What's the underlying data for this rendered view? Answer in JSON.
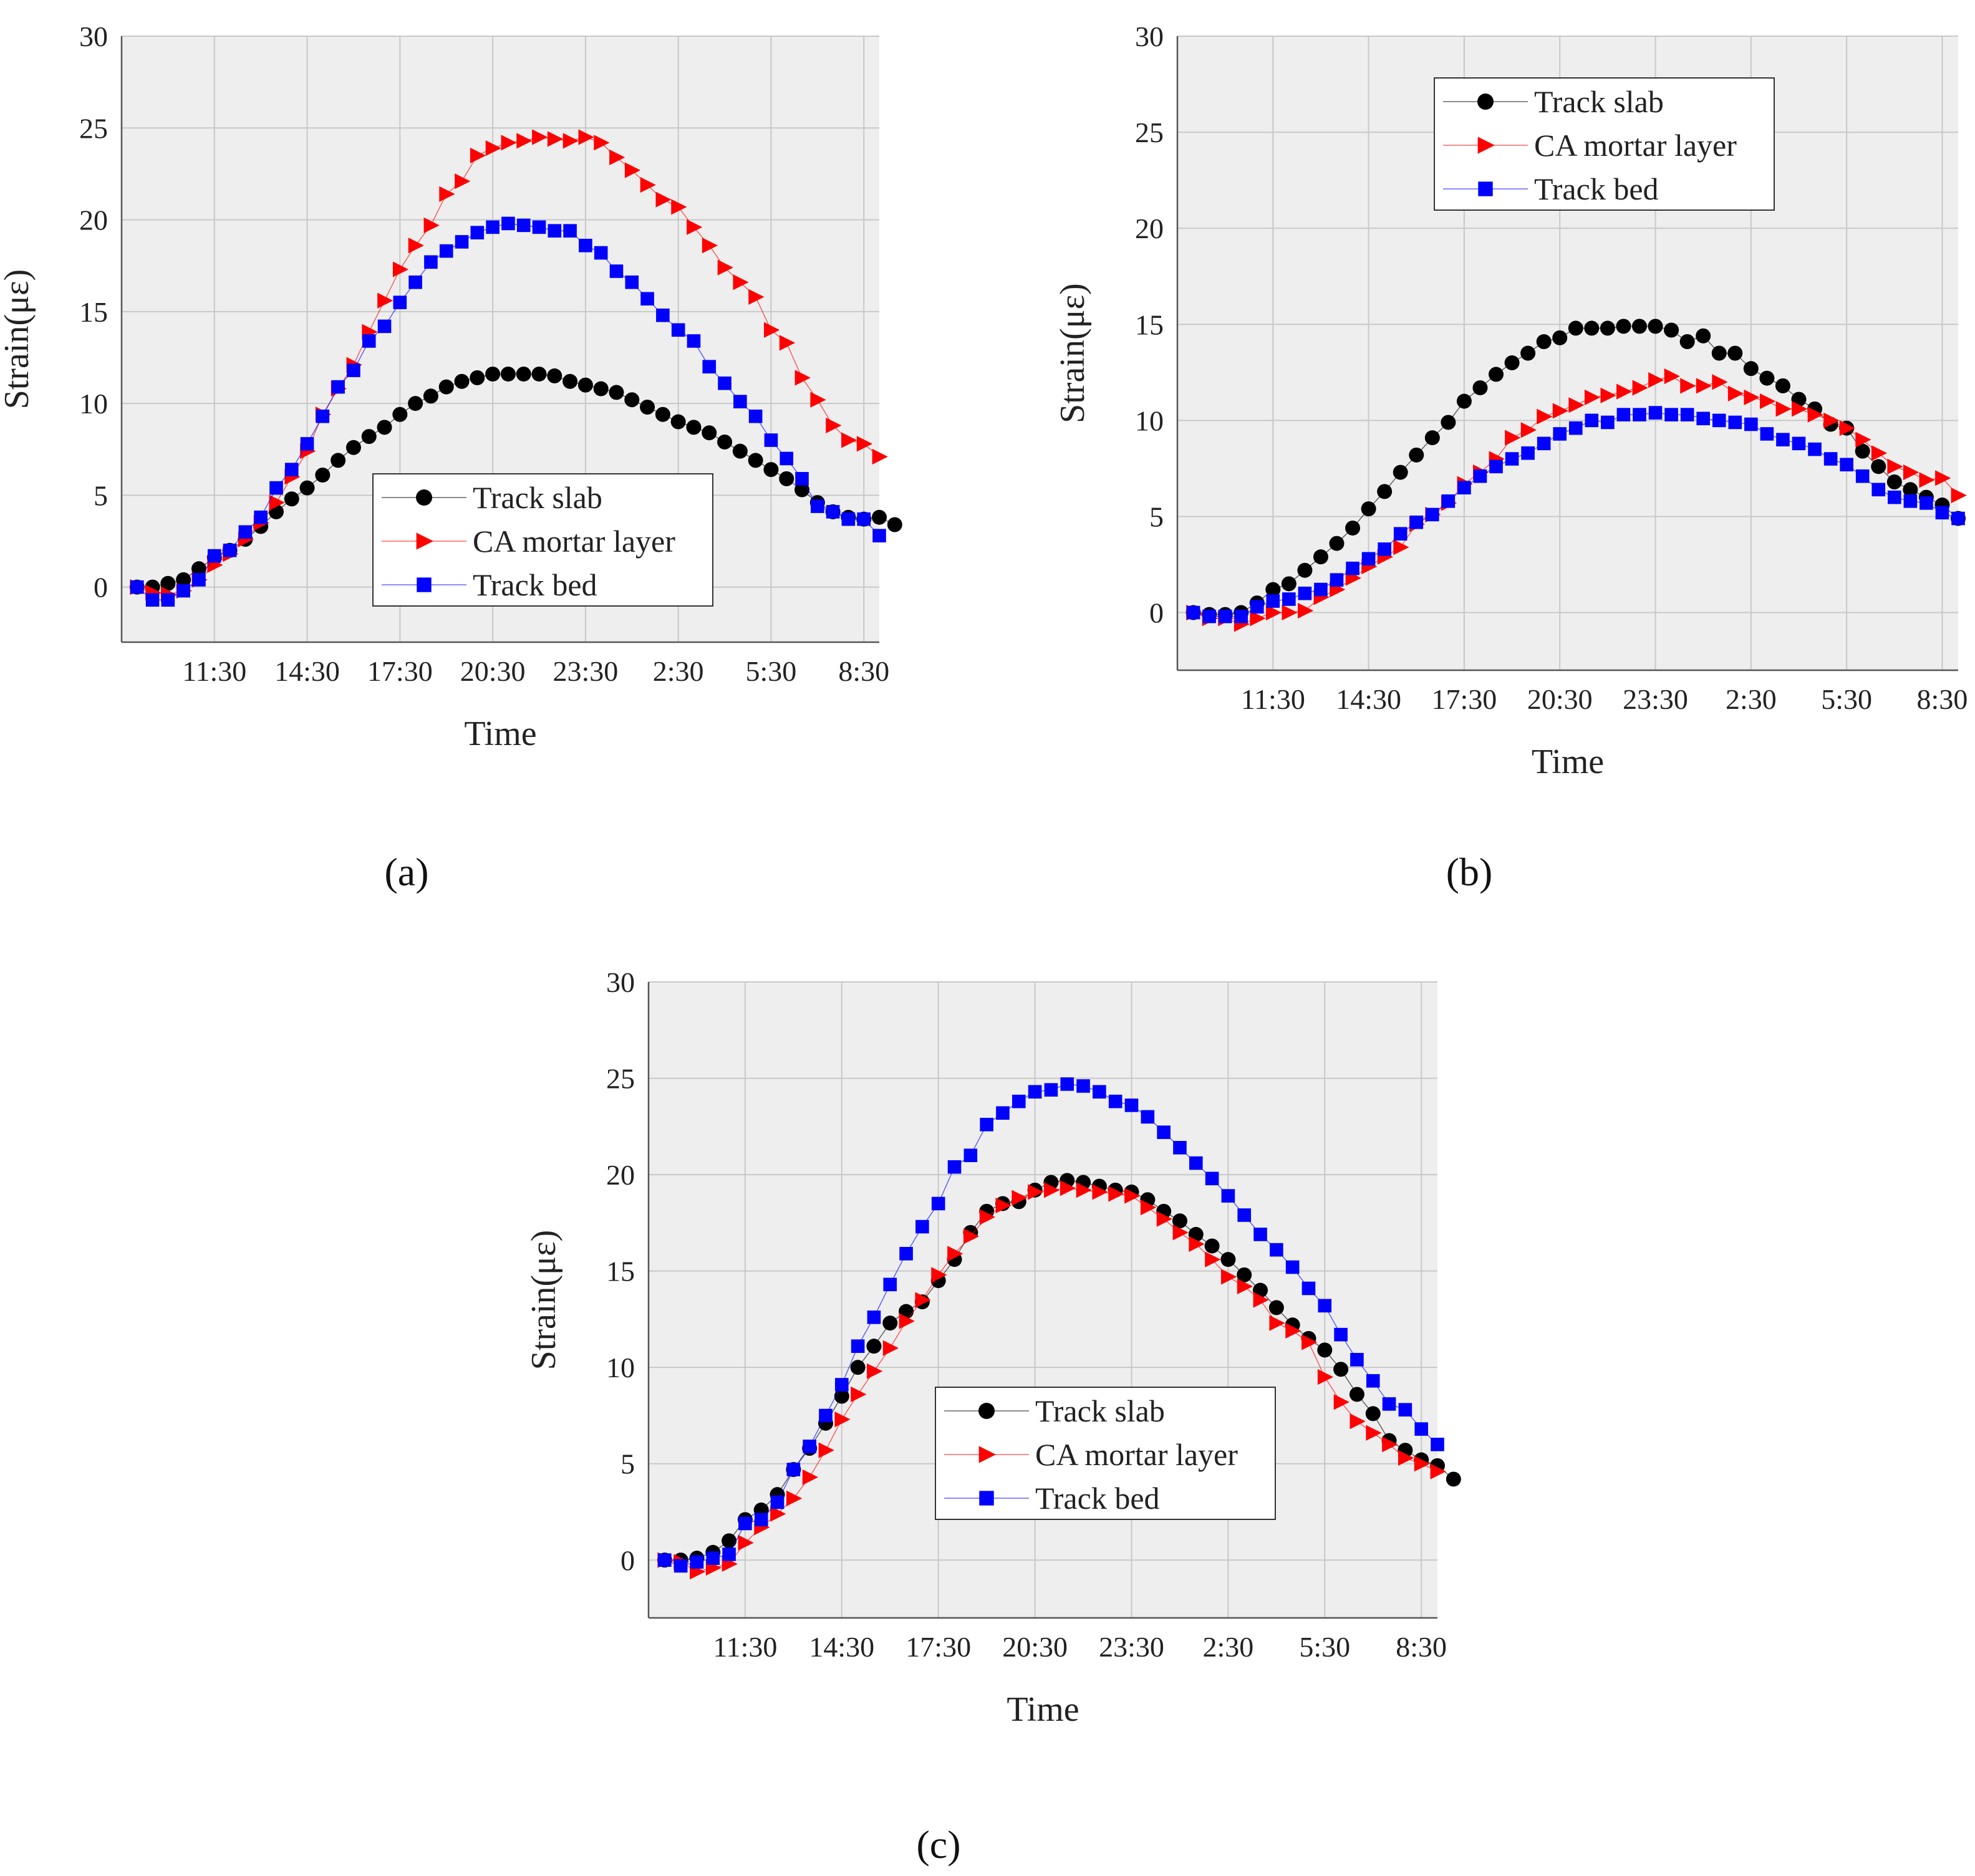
{
  "colors": {
    "plot_background": "#eeeeee",
    "grid": "#c8c8c8",
    "axis": "#555555",
    "track_slab": "#000000",
    "ca_mortar": "#ff0000",
    "track_bed": "#0000ff"
  },
  "chart_data": [
    {
      "type": "scatter",
      "panel": "a",
      "panel_label": "(a)",
      "xlabel": "Time",
      "ylabel": "Strain(με)",
      "ylim": [
        -3,
        30
      ],
      "yticks": [
        0,
        5,
        10,
        15,
        20,
        25,
        30
      ],
      "xlim": [
        -1,
        48
      ],
      "x_ticks": [
        {
          "x": 5,
          "label": "11:30"
        },
        {
          "x": 11,
          "label": "14:30"
        },
        {
          "x": 17,
          "label": "17:30"
        },
        {
          "x": 23,
          "label": "20:30"
        },
        {
          "x": 29,
          "label": "23:30"
        },
        {
          "x": 35,
          "label": "2:30"
        },
        {
          "x": 41,
          "label": "5:30"
        },
        {
          "x": 47,
          "label": "8:30"
        }
      ],
      "x_interval_hours": 0.5,
      "legend": {
        "position": "lower-right",
        "entries": [
          "Track slab",
          "CA mortar layer",
          "Track bed"
        ]
      },
      "series": [
        {
          "name": "Track slab",
          "marker": "circle",
          "color": "#000000",
          "values": [
            0,
            0,
            0.2,
            0.4,
            1.0,
            1.6,
            2.0,
            2.6,
            3.3,
            4.1,
            4.8,
            5.4,
            6.1,
            6.9,
            7.6,
            8.2,
            8.7,
            9.4,
            10.0,
            10.4,
            10.9,
            11.2,
            11.4,
            11.6,
            11.6,
            11.6,
            11.6,
            11.5,
            11.2,
            11.0,
            10.8,
            10.6,
            10.2,
            9.8,
            9.4,
            9.0,
            8.7,
            8.4,
            7.9,
            7.4,
            6.9,
            6.4,
            5.9,
            5.3,
            4.6,
            4.1,
            3.8,
            3.7,
            3.8,
            3.4
          ]
        },
        {
          "name": "CA mortar layer",
          "marker": "triangle-right",
          "color": "#ff0000",
          "values": [
            0,
            -0.3,
            -0.4,
            -0.2,
            0.4,
            1.2,
            1.8,
            2.6,
            3.5,
            4.6,
            6.0,
            7.4,
            9.4,
            10.8,
            12.1,
            13.9,
            15.6,
            17.3,
            18.6,
            19.7,
            21.4,
            22.1,
            23.5,
            23.9,
            24.2,
            24.3,
            24.5,
            24.4,
            24.3,
            24.5,
            24.2,
            23.4,
            22.7,
            21.9,
            21.1,
            20.7,
            19.6,
            18.6,
            17.4,
            16.6,
            15.8,
            14.0,
            13.3,
            11.4,
            10.2,
            8.8,
            8.0,
            7.8,
            7.1
          ]
        },
        {
          "name": "Track bed",
          "marker": "square",
          "color": "#0000ff",
          "values": [
            0,
            -0.7,
            -0.7,
            -0.2,
            0.4,
            1.7,
            2.0,
            3.0,
            3.8,
            5.4,
            6.4,
            7.8,
            9.3,
            10.9,
            11.8,
            13.4,
            14.2,
            15.5,
            16.6,
            17.7,
            18.3,
            18.8,
            19.3,
            19.6,
            19.8,
            19.7,
            19.6,
            19.4,
            19.4,
            18.6,
            18.2,
            17.2,
            16.6,
            15.7,
            14.8,
            14.0,
            13.4,
            12.0,
            11.1,
            10.1,
            9.3,
            8.0,
            7.0,
            5.9,
            4.4,
            4.1,
            3.7,
            3.7,
            2.8
          ]
        }
      ]
    },
    {
      "type": "scatter",
      "panel": "b",
      "panel_label": "(b)",
      "xlabel": "Time",
      "ylabel": "Strain(με)",
      "ylim": [
        -3,
        30
      ],
      "yticks": [
        0,
        5,
        10,
        15,
        20,
        25,
        30
      ],
      "xlim": [
        -1,
        48
      ],
      "x_ticks": [
        {
          "x": 5,
          "label": "11:30"
        },
        {
          "x": 11,
          "label": "14:30"
        },
        {
          "x": 17,
          "label": "17:30"
        },
        {
          "x": 23,
          "label": "20:30"
        },
        {
          "x": 29,
          "label": "23:30"
        },
        {
          "x": 35,
          "label": "2:30"
        },
        {
          "x": 41,
          "label": "5:30"
        },
        {
          "x": 47,
          "label": "8:30"
        }
      ],
      "x_interval_hours": 0.5,
      "legend": {
        "position": "top-center",
        "entries": [
          "Track slab",
          "CA mortar layer",
          "Track bed"
        ]
      },
      "series": [
        {
          "name": "Track slab",
          "marker": "circle",
          "color": "#000000",
          "values": [
            0,
            -0.1,
            -0.1,
            0,
            0.5,
            1.2,
            1.5,
            2.2,
            2.9,
            3.6,
            4.4,
            5.4,
            6.3,
            7.3,
            8.2,
            9.1,
            9.9,
            11.0,
            11.7,
            12.4,
            13.0,
            13.5,
            14.1,
            14.3,
            14.8,
            14.8,
            14.8,
            14.9,
            14.9,
            14.9,
            14.7,
            14.1,
            14.4,
            13.5,
            13.5,
            12.7,
            12.2,
            11.8,
            11.1,
            10.6,
            9.8,
            9.6,
            8.4,
            7.6,
            6.8,
            6.4,
            6.0,
            5.6,
            4.9
          ]
        },
        {
          "name": "CA mortar layer",
          "marker": "triangle-right",
          "color": "#ff0000",
          "values": [
            0,
            -0.3,
            -0.3,
            -0.6,
            -0.3,
            0,
            0,
            0.1,
            0.8,
            1.2,
            1.8,
            2.4,
            2.9,
            3.4,
            4.6,
            5.1,
            5.7,
            6.7,
            7.3,
            8.0,
            9.1,
            9.5,
            10.2,
            10.5,
            10.8,
            11.2,
            11.3,
            11.5,
            11.7,
            12.1,
            12.3,
            11.8,
            11.8,
            12.0,
            11.4,
            11.2,
            11.0,
            10.6,
            10.6,
            10.3,
            10.0,
            9.6,
            9.0,
            8.3,
            7.6,
            7.3,
            6.9,
            7.0,
            6.1
          ]
        },
        {
          "name": "Track bed",
          "marker": "square",
          "color": "#0000ff",
          "values": [
            0,
            -0.2,
            -0.2,
            -0.2,
            0.3,
            0.6,
            0.7,
            1.0,
            1.2,
            1.7,
            2.3,
            2.8,
            3.3,
            4.1,
            4.7,
            5.1,
            5.8,
            6.5,
            7.1,
            7.6,
            8.0,
            8.3,
            8.8,
            9.3,
            9.6,
            10.0,
            9.9,
            10.3,
            10.3,
            10.4,
            10.3,
            10.3,
            10.1,
            10.0,
            9.9,
            9.8,
            9.3,
            9.0,
            8.8,
            8.5,
            8.0,
            7.7,
            7.1,
            6.4,
            6.0,
            5.8,
            5.7,
            5.2,
            4.9
          ]
        }
      ]
    },
    {
      "type": "scatter",
      "panel": "c",
      "panel_label": "(c)",
      "xlabel": "Time",
      "ylabel": "Strain(με)",
      "ylim": [
        -3,
        30
      ],
      "yticks": [
        0,
        5,
        10,
        15,
        20,
        25,
        30
      ],
      "xlim": [
        -1,
        48
      ],
      "x_ticks": [
        {
          "x": 5,
          "label": "11:30"
        },
        {
          "x": 11,
          "label": "14:30"
        },
        {
          "x": 17,
          "label": "17:30"
        },
        {
          "x": 23,
          "label": "20:30"
        },
        {
          "x": 29,
          "label": "23:30"
        },
        {
          "x": 35,
          "label": "2:30"
        },
        {
          "x": 41,
          "label": "5:30"
        },
        {
          "x": 47,
          "label": "8:30"
        }
      ],
      "x_interval_hours": 0.5,
      "legend": {
        "position": "lower-right",
        "entries": [
          "Track slab",
          "CA mortar layer",
          "Track bed"
        ]
      },
      "series": [
        {
          "name": "Track slab",
          "marker": "circle",
          "color": "#000000",
          "values": [
            0,
            0,
            0.1,
            0.4,
            1.0,
            2.1,
            2.6,
            3.4,
            4.7,
            5.8,
            7.1,
            8.5,
            10.0,
            11.1,
            12.3,
            12.9,
            13.4,
            14.5,
            15.6,
            17.0,
            18.1,
            18.5,
            18.6,
            19.2,
            19.6,
            19.7,
            19.6,
            19.4,
            19.2,
            19.1,
            18.7,
            18.1,
            17.6,
            16.9,
            16.3,
            15.6,
            14.8,
            14.0,
            13.1,
            12.2,
            11.5,
            10.9,
            9.9,
            8.6,
            7.6,
            6.2,
            5.7,
            5.2,
            4.9,
            4.2
          ]
        },
        {
          "name": "CA mortar layer",
          "marker": "triangle-right",
          "color": "#ff0000",
          "values": [
            0,
            -0.1,
            -0.6,
            -0.4,
            -0.2,
            0.9,
            1.7,
            2.4,
            3.2,
            4.3,
            5.7,
            7.3,
            8.6,
            9.8,
            11.0,
            12.4,
            13.5,
            14.8,
            15.9,
            16.8,
            17.8,
            18.4,
            18.8,
            19.1,
            19.2,
            19.3,
            19.2,
            19.1,
            19.0,
            18.9,
            18.3,
            17.7,
            17.0,
            16.4,
            15.6,
            14.7,
            14.2,
            13.5,
            12.3,
            11.9,
            11.3,
            9.5,
            8.2,
            7.2,
            6.6,
            6.0,
            5.3,
            5.0,
            4.6
          ]
        },
        {
          "name": "Track bed",
          "marker": "square",
          "color": "#0000ff",
          "values": [
            0,
            -0.3,
            -0.1,
            0.1,
            0.3,
            1.9,
            2.1,
            3.0,
            4.7,
            5.9,
            7.5,
            9.1,
            11.1,
            12.6,
            14.3,
            15.9,
            17.3,
            18.5,
            20.4,
            21.0,
            22.6,
            23.2,
            23.8,
            24.3,
            24.4,
            24.7,
            24.6,
            24.3,
            23.8,
            23.6,
            23.0,
            22.2,
            21.4,
            20.6,
            19.8,
            18.9,
            17.9,
            16.9,
            16.1,
            15.2,
            14.1,
            13.2,
            11.7,
            10.4,
            9.3,
            8.1,
            7.8,
            6.8,
            6.0
          ]
        }
      ]
    }
  ]
}
